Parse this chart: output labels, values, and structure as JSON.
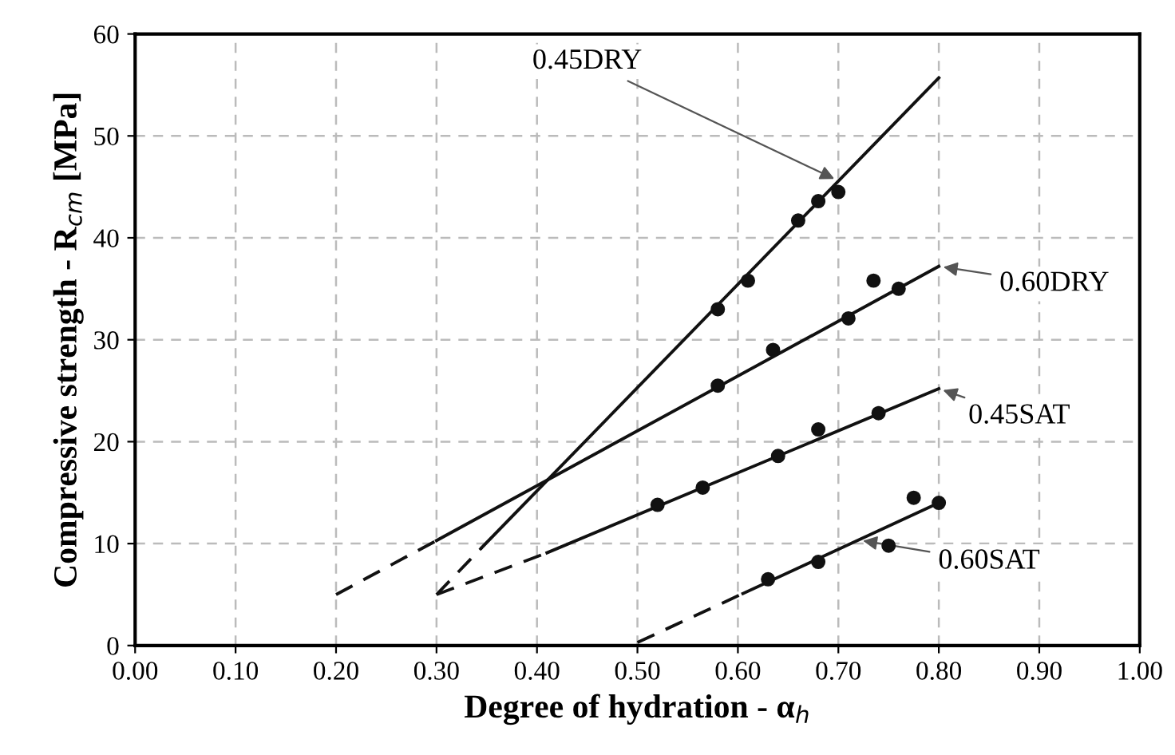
{
  "chart_data": {
    "type": "line",
    "xlabel": "Degree of hydration - α$_{h}$",
    "ylabel": "Compressive strength - R$_{cm}$ [MPa]",
    "xlim": [
      0,
      1
    ],
    "ylim": [
      0,
      60
    ],
    "xticks": [
      {
        "value": 0,
        "label": "0.00"
      },
      {
        "value": 0.1,
        "label": "0.10"
      },
      {
        "value": 0.2,
        "label": "0.20"
      },
      {
        "value": 0.3,
        "label": "0.30"
      },
      {
        "value": 0.4,
        "label": "0.40"
      },
      {
        "value": 0.5,
        "label": "0.50"
      },
      {
        "value": 0.6,
        "label": "0.60"
      },
      {
        "value": 0.7,
        "label": "0.70"
      },
      {
        "value": 0.8,
        "label": "0.80"
      },
      {
        "value": 0.9,
        "label": "0.90"
      },
      {
        "value": 1,
        "label": "1.00"
      }
    ],
    "yticks": [
      0,
      10,
      20,
      30,
      40,
      50,
      60
    ],
    "grid": true,
    "legend": false,
    "series": [
      {
        "type": "line",
        "line_style": "dashed",
        "color": "#111111",
        "x": [
          0.3,
          0.345
        ],
        "values": [
          5,
          9.6
        ]
      },
      {
        "type": "line",
        "line_style": "solid",
        "color": "#111111",
        "x": [
          0.345,
          0.8
        ],
        "values": [
          9.6,
          55.7
        ]
      },
      {
        "type": "line",
        "line_style": "dashed",
        "color": "#111111",
        "x": [
          0.2,
          0.3
        ],
        "values": [
          5,
          10.3
        ]
      },
      {
        "type": "line",
        "line_style": "solid",
        "color": "#111111",
        "x": [
          0.3,
          0.8
        ],
        "values": [
          10.3,
          37.2
        ]
      },
      {
        "type": "line",
        "line_style": "dashed",
        "color": "#111111",
        "x": [
          0.3,
          0.41
        ],
        "values": [
          5,
          9.1
        ]
      },
      {
        "type": "line",
        "line_style": "solid",
        "color": "#111111",
        "x": [
          0.41,
          0.8
        ],
        "values": [
          9.1,
          25.2
        ]
      },
      {
        "type": "line",
        "line_style": "dashed",
        "color": "#111111",
        "x": [
          0.5,
          0.605
        ],
        "values": [
          0.3,
          5.1
        ]
      },
      {
        "type": "line",
        "line_style": "solid",
        "color": "#111111",
        "x": [
          0.605,
          0.8
        ],
        "values": [
          5.1,
          14
        ]
      },
      {
        "type": "scatter",
        "marker": "circle",
        "color": "#111111",
        "x": [
          0.58,
          0.61,
          0.66,
          0.68,
          0.7
        ],
        "values": [
          33,
          35.8,
          41.7,
          43.6,
          44.5
        ]
      },
      {
        "type": "scatter",
        "marker": "circle",
        "color": "#111111",
        "x": [
          0.58,
          0.635,
          0.71,
          0.735,
          0.76
        ],
        "values": [
          25.5,
          29,
          32.1,
          35.8,
          35
        ]
      },
      {
        "type": "scatter",
        "marker": "circle",
        "color": "#111111",
        "x": [
          0.52,
          0.565,
          0.64,
          0.68,
          0.74
        ],
        "values": [
          13.8,
          15.5,
          18.6,
          21.2,
          22.8
        ]
      },
      {
        "type": "scatter",
        "marker": "circle",
        "color": "#111111",
        "x": [
          0.63,
          0.68,
          0.75,
          0.775,
          0.8
        ],
        "values": [
          6.5,
          8.2,
          9.8,
          14.5,
          14
        ]
      }
    ],
    "annotations": [
      {
        "text": "0.45DRY",
        "x": 0.7,
        "y": 45.6
      },
      {
        "text": "0.60DRY",
        "x": 0.8,
        "y": 37.2
      },
      {
        "text": "0.45SAT",
        "x": 0.8,
        "y": 25.2
      },
      {
        "text": "0.60SAT",
        "x": 0.72,
        "y": 10.35
      }
    ]
  }
}
